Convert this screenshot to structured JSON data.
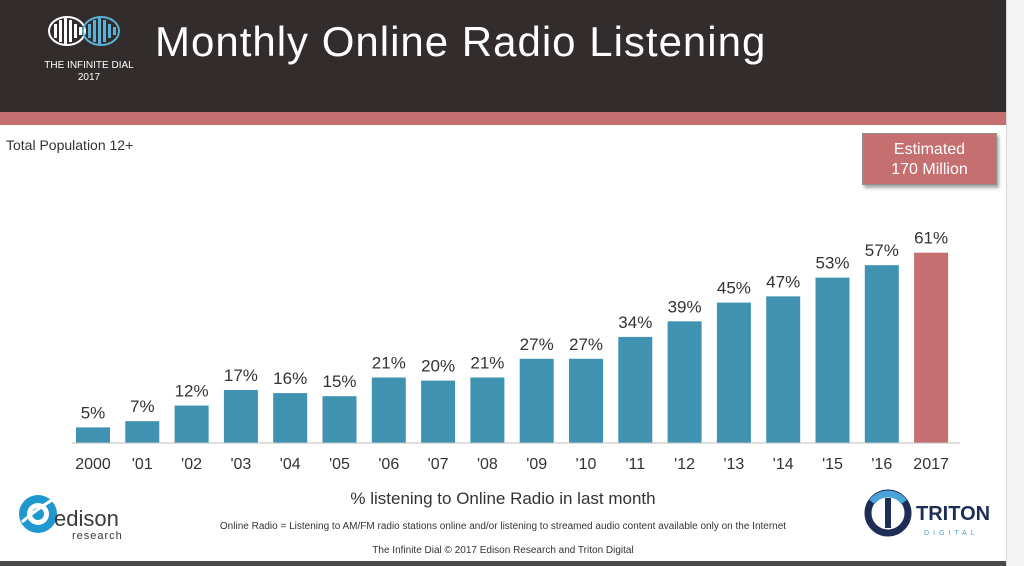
{
  "header": {
    "title": "Monthly Online Radio Listening",
    "logo_line1": "THE INFINITE DIAL",
    "logo_line2": "2017"
  },
  "population_label": "Total Population 12+",
  "estimate": {
    "line1": "Estimated",
    "line2": "170 Million"
  },
  "chart_data": {
    "type": "bar",
    "categories": [
      "2000",
      "'01",
      "'02",
      "'03",
      "'04",
      "'05",
      "'06",
      "'07",
      "'08",
      "'09",
      "'10",
      "'11",
      "'12",
      "'13",
      "'14",
      "'15",
      "'16",
      "2017"
    ],
    "values": [
      5,
      7,
      12,
      17,
      16,
      15,
      21,
      20,
      21,
      27,
      27,
      34,
      39,
      45,
      47,
      53,
      57,
      61
    ],
    "data_labels": [
      "5%",
      "7%",
      "12%",
      "17%",
      "16%",
      "15%",
      "21%",
      "20%",
      "21%",
      "27%",
      "27%",
      "34%",
      "39%",
      "45%",
      "47%",
      "53%",
      "57%",
      "61%"
    ],
    "xlabel": "% listening to Online Radio in last month",
    "ylabel": "",
    "ylim": [
      0,
      100
    ],
    "colors": {
      "default": "#3f93b0",
      "highlight": "#c66f71"
    },
    "highlight_index": 17,
    "grid": false,
    "legend": "none"
  },
  "definition": "Online Radio = Listening to AM/FM radio stations online and/or listening to streamed audio content available only on the Internet",
  "footer": "The Infinite Dial  © 2017 Edison Research and Triton Digital",
  "logos": {
    "edison_word": "edison",
    "edison_sub": "research",
    "triton_word": "TRITON",
    "triton_sub": "DIGITAL"
  },
  "colors": {
    "header_bg": "#332c2c",
    "stripe": "#c66f71",
    "accent_blue": "#3f93b0"
  }
}
